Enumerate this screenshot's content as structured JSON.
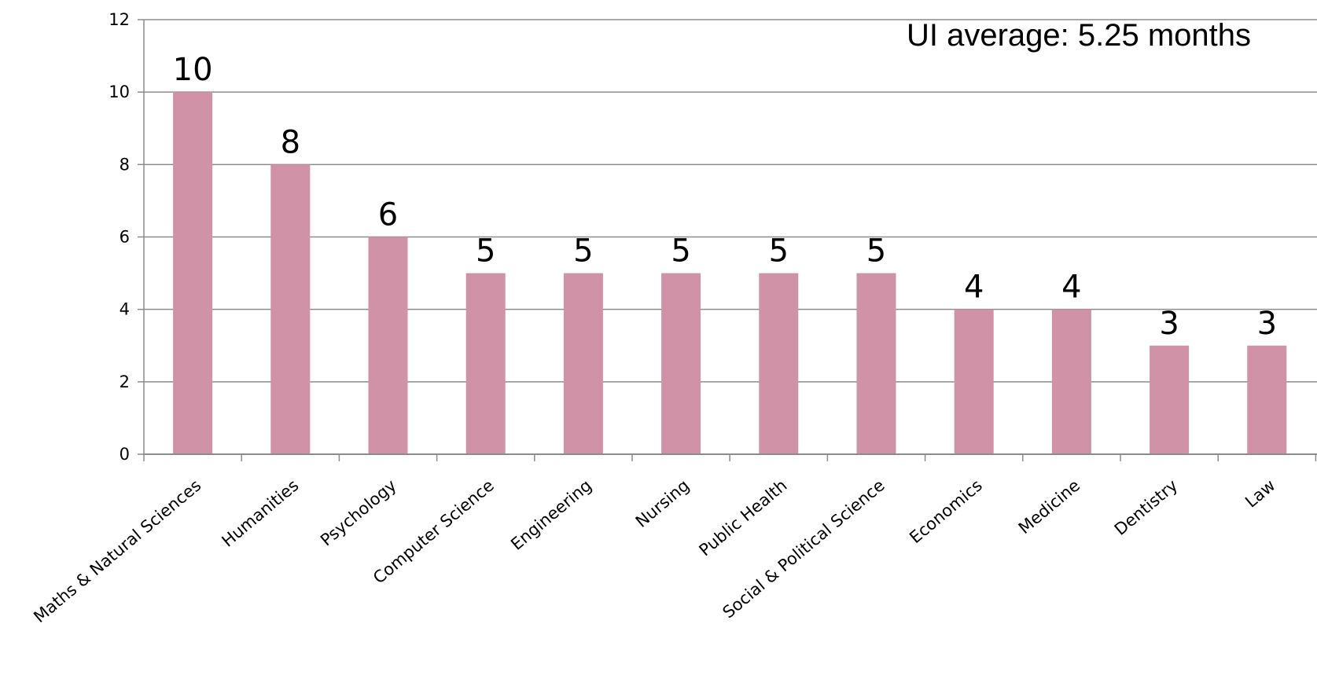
{
  "chart_data": {
    "type": "bar",
    "title": "",
    "xlabel": "",
    "ylabel": "",
    "categories": [
      "Maths & Natural Sciences",
      "Humanities",
      "Psychology",
      "Computer Science",
      "Engineering",
      "Nursing",
      "Public Health",
      "Social & Political Science",
      "Economics",
      "Medicine",
      "Dentistry",
      "Law"
    ],
    "values": [
      10,
      8,
      6,
      5,
      5,
      5,
      5,
      5,
      4,
      4,
      3,
      3
    ],
    "ylim": [
      0,
      12
    ],
    "yticks": [
      0,
      2,
      4,
      6,
      8,
      10,
      12
    ],
    "grid": true,
    "legend": "none",
    "annotation": "UI average: 5.25 months",
    "bar_color": "#d092a7",
    "grid_color": "#8c8c8c",
    "axis_color": "#8c8c8c"
  }
}
